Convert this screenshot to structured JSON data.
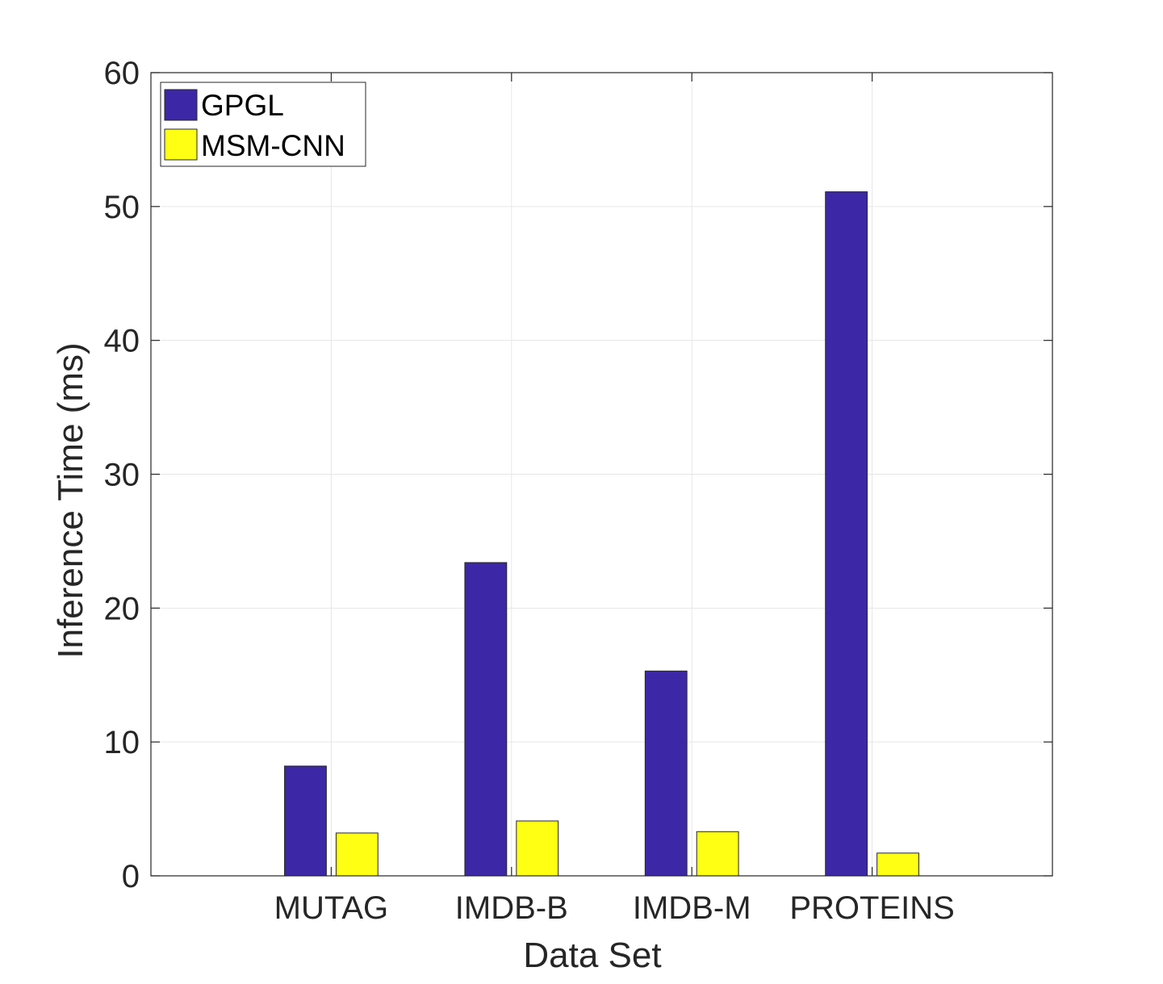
{
  "chart_data": {
    "type": "bar",
    "title": "",
    "xlabel": "Data Set",
    "ylabel": "Inference Time (ms)",
    "categories": [
      "MUTAG",
      "IMDB-B",
      "IMDB-M",
      "PROTEINS"
    ],
    "series": [
      {
        "name": "GPGL",
        "values": [
          8.2,
          23.4,
          15.3,
          51.1
        ],
        "color": "#3c28a6"
      },
      {
        "name": "MSM-CNN",
        "values": [
          3.2,
          4.1,
          3.3,
          1.7
        ],
        "color": "#ffff14"
      }
    ],
    "ylim": [
      0,
      60
    ],
    "yticks": [
      0,
      10,
      20,
      30,
      40,
      50,
      60
    ],
    "xlim": [
      0,
      5
    ],
    "grid": true,
    "legend_position": "top-left"
  }
}
